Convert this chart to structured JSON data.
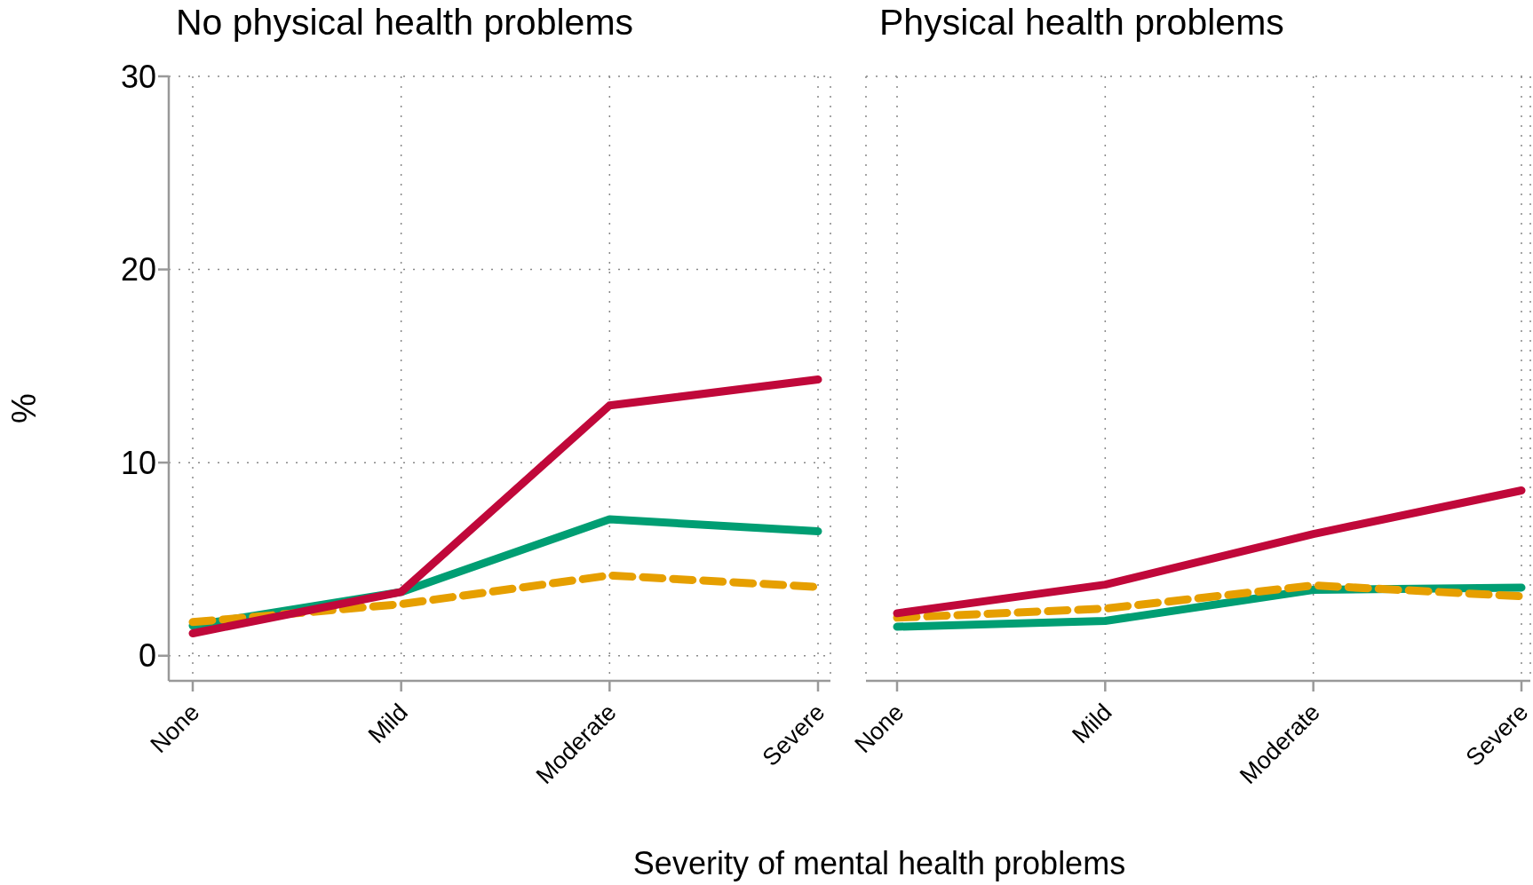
{
  "chart_data": [
    {
      "type": "line",
      "title": "No physical health problems",
      "xlabel": "Severity of mental health problems",
      "ylabel": "%",
      "categories": [
        "None",
        "Mild",
        "Moderate",
        "Severe"
      ],
      "ylim": [
        -1.3,
        30
      ],
      "yticks": [
        0,
        10,
        20,
        30
      ],
      "grid": true,
      "legend": false,
      "marker": "none",
      "series": [
        {
          "color": "#009e73",
          "values": [
            1.56,
            3.3,
            7.06,
            6.44
          ],
          "line_style": "solid"
        },
        {
          "color": "#e69f00",
          "values": [
            1.74,
            2.67,
            4.16,
            3.56
          ],
          "line_style": "dashed"
        },
        {
          "color": "#c0083a",
          "values": [
            1.16,
            3.3,
            12.96,
            14.3
          ],
          "line_style": "solid"
        }
      ]
    },
    {
      "type": "line",
      "title": "Physical health problems",
      "categories": [
        "None",
        "Mild",
        "Moderate",
        "Severe"
      ],
      "ylim": [
        -1.3,
        30
      ],
      "yticks": [
        0,
        10,
        20,
        30
      ],
      "tick_labels": "x",
      "grid": true,
      "legend": false,
      "marker": "none",
      "series": [
        {
          "color": "#009e73",
          "values": [
            1.5,
            1.8,
            3.41,
            3.53
          ],
          "line_style": "solid"
        },
        {
          "color": "#e69f00",
          "values": [
            1.97,
            2.44,
            3.64,
            3.08
          ],
          "line_style": "dashed"
        },
        {
          "color": "#c0083a",
          "values": [
            2.2,
            3.68,
            6.3,
            8.56
          ],
          "line_style": "solid"
        }
      ]
    }
  ]
}
